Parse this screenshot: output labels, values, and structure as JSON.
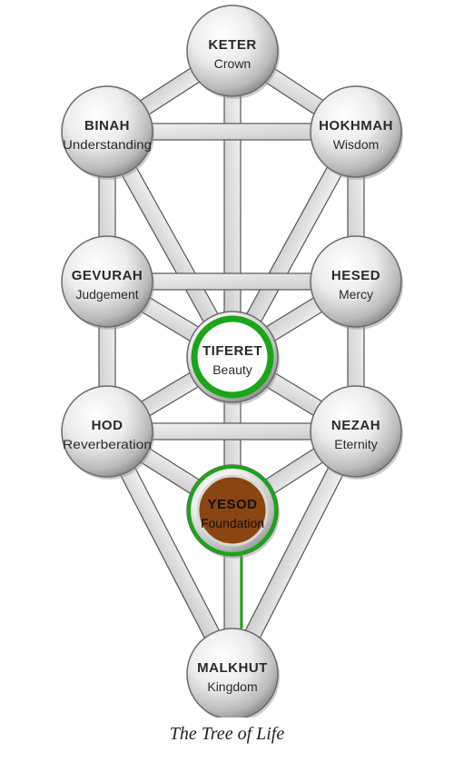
{
  "caption": "The Tree of Life",
  "colors": {
    "highlight_ring": "#1aa51a",
    "yesod_fill": "#8b4513",
    "sphere_light": "#ffffff",
    "sphere_dark": "#8a8a8a"
  },
  "spheres": [
    {
      "id": "keter",
      "name": "KETER",
      "meaning": "Crown"
    },
    {
      "id": "binah",
      "name": "BINAH",
      "meaning": "Understanding"
    },
    {
      "id": "hokhmah",
      "name": "HOKHMAH",
      "meaning": "Wisdom"
    },
    {
      "id": "gevurah",
      "name": "GEVURAH",
      "meaning": "Judgement"
    },
    {
      "id": "hesed",
      "name": "HESED",
      "meaning": "Mercy"
    },
    {
      "id": "tiferet",
      "name": "TIFERET",
      "meaning": "Beauty",
      "highlight": "ring"
    },
    {
      "id": "hod",
      "name": "HOD",
      "meaning": "Reverberation"
    },
    {
      "id": "nezah",
      "name": "NEZAH",
      "meaning": "Eternity"
    },
    {
      "id": "yesod",
      "name": "YESOD",
      "meaning": "Foundation",
      "highlight": "filled"
    },
    {
      "id": "malkhut",
      "name": "MALKHUT",
      "meaning": "Kingdom"
    }
  ],
  "paths": [
    [
      "keter",
      "binah"
    ],
    [
      "keter",
      "hokhmah"
    ],
    [
      "keter",
      "tiferet"
    ],
    [
      "binah",
      "hokhmah"
    ],
    [
      "binah",
      "gevurah"
    ],
    [
      "binah",
      "tiferet"
    ],
    [
      "hokhmah",
      "hesed"
    ],
    [
      "hokhmah",
      "tiferet"
    ],
    [
      "gevurah",
      "hesed"
    ],
    [
      "gevurah",
      "tiferet"
    ],
    [
      "gevurah",
      "hod"
    ],
    [
      "hesed",
      "tiferet"
    ],
    [
      "hesed",
      "nezah"
    ],
    [
      "tiferet",
      "hod"
    ],
    [
      "tiferet",
      "nezah"
    ],
    [
      "tiferet",
      "yesod"
    ],
    [
      "hod",
      "nezah"
    ],
    [
      "hod",
      "yesod"
    ],
    [
      "hod",
      "malkhut"
    ],
    [
      "nezah",
      "yesod"
    ],
    [
      "nezah",
      "malkhut"
    ],
    [
      "yesod",
      "malkhut"
    ]
  ],
  "highlighted_paths": [
    [
      "yesod",
      "malkhut"
    ]
  ]
}
